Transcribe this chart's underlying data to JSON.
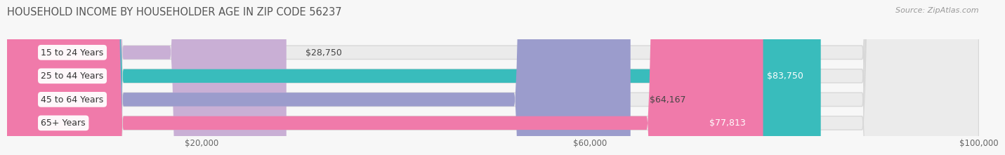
{
  "title": "HOUSEHOLD INCOME BY HOUSEHOLDER AGE IN ZIP CODE 56237",
  "source": "Source: ZipAtlas.com",
  "categories": [
    "15 to 24 Years",
    "25 to 44 Years",
    "45 to 64 Years",
    "65+ Years"
  ],
  "values": [
    28750,
    83750,
    64167,
    77813
  ],
  "bar_colors": [
    "#c9afd5",
    "#39bcbc",
    "#9b9ccc",
    "#f07aaa"
  ],
  "track_color": "#ebebeb",
  "track_border_color": "#d8d8d8",
  "value_labels": [
    "$28,750",
    "$83,750",
    "$64,167",
    "$77,813"
  ],
  "value_label_inside": [
    false,
    true,
    false,
    true
  ],
  "value_label_colors_inside": [
    "#555555",
    "#ffffff",
    "#555555",
    "#ffffff"
  ],
  "xmax": 100000,
  "xticks": [
    20000,
    60000,
    100000
  ],
  "xticklabels": [
    "$20,000",
    "$60,000",
    "$100,000"
  ],
  "background_color": "#f7f7f7",
  "bar_height": 0.58,
  "title_fontsize": 10.5,
  "label_fontsize": 9,
  "value_fontsize": 9,
  "source_fontsize": 8,
  "tick_fontsize": 8.5
}
